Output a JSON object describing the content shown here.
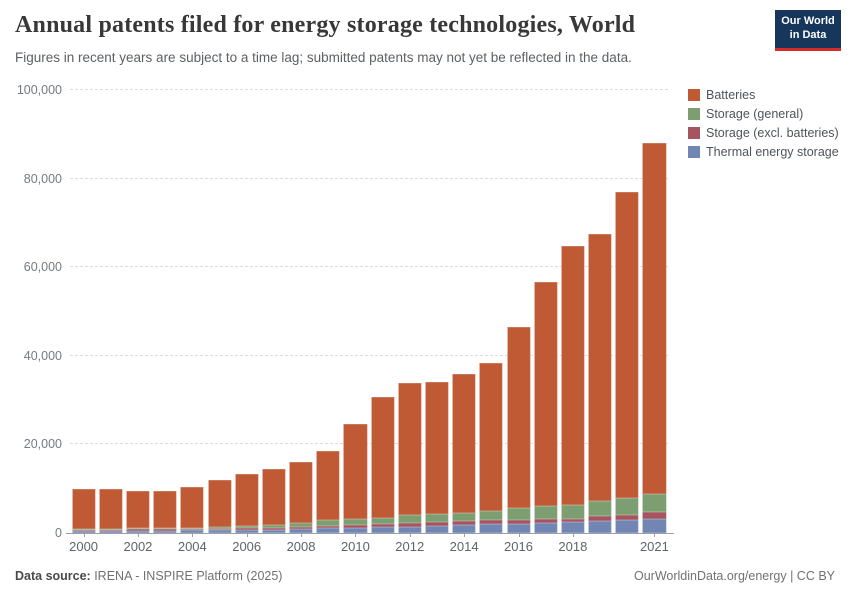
{
  "header": {
    "title": "Annual patents filed for energy storage technologies, World",
    "subtitle": "Figures in recent years are subject to a time lag; submitted patents may not yet be reflected in the data."
  },
  "logo": {
    "line1": "Our World",
    "line2": "in Data",
    "bg_color": "#16365c",
    "bar_color": "#d42b2b"
  },
  "chart_data": {
    "type": "bar",
    "stacked": true,
    "title": "Annual patents filed for energy storage technologies, World",
    "x": [
      2000,
      2001,
      2002,
      2003,
      2004,
      2005,
      2006,
      2007,
      2008,
      2009,
      2010,
      2011,
      2012,
      2013,
      2014,
      2015,
      2016,
      2017,
      2018,
      2019,
      2020,
      2021
    ],
    "x_tick_values": [
      2000,
      2002,
      2004,
      2006,
      2008,
      2010,
      2012,
      2014,
      2016,
      2018,
      2021
    ],
    "ylim": [
      0,
      100000
    ],
    "yticks": [
      0,
      20000,
      40000,
      60000,
      80000,
      100000
    ],
    "ytick_labels": [
      "0",
      "20,000",
      "40,000",
      "60,000",
      "80,000",
      "100,000"
    ],
    "grid": "dashed-horizontal",
    "legend_position": "right",
    "stack_order_bottom_to_top": [
      "Thermal energy storage",
      "Storage (excl. batteries)",
      "Storage (general)",
      "Batteries"
    ],
    "series": [
      {
        "name": "Batteries",
        "color": "#bf5a35",
        "values": [
          9000,
          9050,
          8550,
          8350,
          9350,
          10650,
          11800,
          12500,
          13700,
          15650,
          21400,
          27300,
          29800,
          29900,
          31500,
          33400,
          40800,
          50500,
          58500,
          60350,
          69100,
          79300
        ]
      },
      {
        "name": "Storage (general)",
        "color": "#7c9e70",
        "values": [
          200,
          250,
          250,
          250,
          300,
          400,
          500,
          700,
          850,
          1200,
          1350,
          1500,
          1800,
          1800,
          1700,
          1950,
          2700,
          2950,
          3200,
          3300,
          3750,
          4150
        ]
      },
      {
        "name": "Storage (excl. batteries)",
        "color": "#a4555f",
        "values": [
          200,
          200,
          250,
          250,
          250,
          300,
          400,
          450,
          550,
          600,
          700,
          700,
          850,
          900,
          1000,
          1050,
          900,
          900,
          700,
          1150,
          1200,
          1500
        ]
      },
      {
        "name": "Thermal energy storage",
        "color": "#7286b4",
        "values": [
          500,
          500,
          550,
          550,
          600,
          650,
          700,
          750,
          900,
          1050,
          1150,
          1300,
          1450,
          1600,
          1800,
          2000,
          2000,
          2250,
          2400,
          2700,
          2950,
          3150
        ]
      }
    ],
    "totals": [
      9900,
      10000,
      9600,
      9400,
      10500,
      12000,
      13400,
      14400,
      16000,
      18500,
      24600,
      30800,
      33900,
      34200,
      36000,
      38400,
      46400,
      56600,
      64800,
      67500,
      77000,
      88100
    ]
  },
  "footer": {
    "source_label": "Data source:",
    "source_text": " IRENA - INSPIRE Platform (2025)",
    "right_text": "OurWorldinData.org/energy | CC BY"
  }
}
